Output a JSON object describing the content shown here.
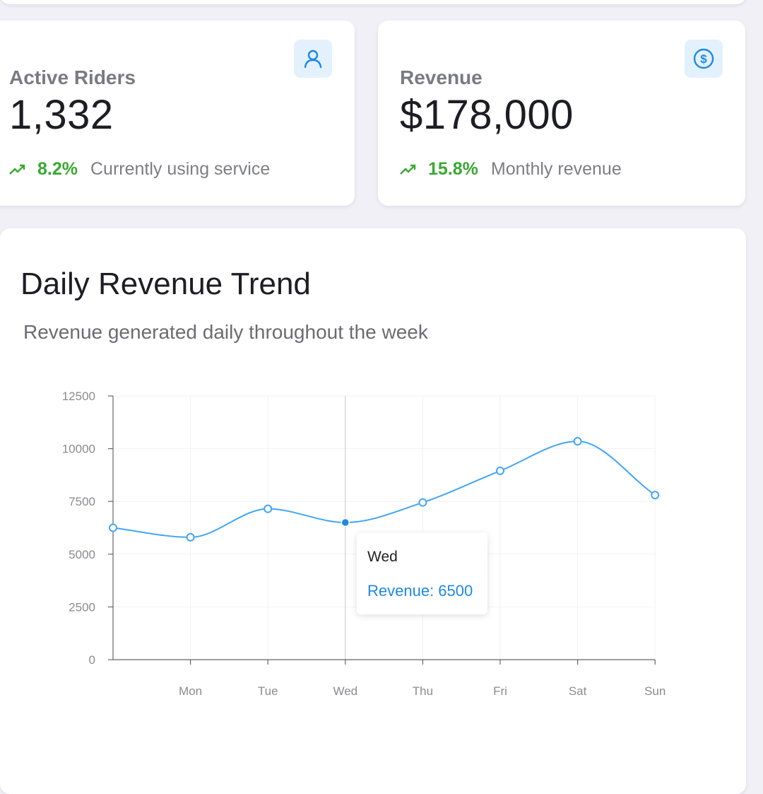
{
  "cards": [
    {
      "label": "Active Riders",
      "value": "1,332",
      "change": "8.2%",
      "description": "Currently using service",
      "icon": "user-icon"
    },
    {
      "label": "Revenue",
      "value": "$178,000",
      "change": "15.8%",
      "description": "Monthly revenue",
      "icon": "dollar-icon"
    }
  ],
  "chart": {
    "title": "Daily Revenue Trend",
    "subtitle": "Revenue generated daily throughout the week"
  },
  "tooltip": {
    "day": "Wed",
    "text": "Revenue: 6500"
  },
  "colors": {
    "accent": "#42a5f5",
    "positive": "#3aa832",
    "tooltip_text": "#1e88e5",
    "icon_bg": "#e3f1fd"
  },
  "chart_data": {
    "type": "line",
    "x": [
      "",
      "Mon",
      "Tue",
      "Wed",
      "Thu",
      "Fri",
      "Sat",
      "Sun"
    ],
    "tick_labels_x": [
      "Mon",
      "Tue",
      "Wed",
      "Thu",
      "Fri",
      "Sat",
      "Sun"
    ],
    "series": [
      {
        "name": "Revenue",
        "values": [
          6250,
          5800,
          7150,
          6500,
          7450,
          8950,
          10350,
          7800
        ]
      }
    ],
    "highlighted_index": 3,
    "ylim": [
      0,
      12500
    ],
    "y_ticks": [
      0,
      2500,
      5000,
      7500,
      10000,
      12500
    ],
    "grid": true,
    "legend": "none"
  }
}
